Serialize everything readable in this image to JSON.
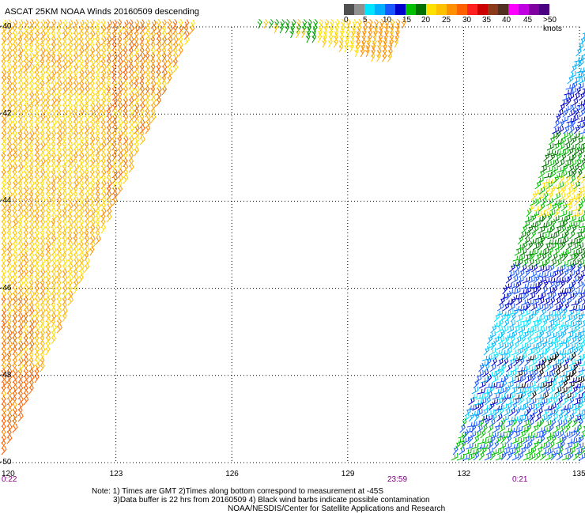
{
  "title": "ASCAT 25KM NOAA Winds 20160509 descending",
  "legend": {
    "colors": [
      "#505050",
      "#909090",
      "#00e5ff",
      "#00b0ff",
      "#1a58ff",
      "#0000cc",
      "#00c000",
      "#007000",
      "#ffe000",
      "#ffc000",
      "#ff9000",
      "#ff6000",
      "#ff2020",
      "#cc0000",
      "#8b3a1a",
      "#503020",
      "#ff00ff",
      "#c000e0",
      "#8000a0",
      "#4b0082"
    ],
    "labels": [
      "0",
      "5",
      "10",
      "15",
      "20",
      "25",
      "30",
      "35",
      "40",
      "45",
      ">50 knots"
    ]
  },
  "axes": {
    "lat_labels": [
      "-40",
      "-42",
      "-44",
      "-46",
      "-48",
      "-50"
    ],
    "lon_labels": [
      "120",
      "123",
      "126",
      "129",
      "132",
      "135"
    ]
  },
  "times": [
    "0:22",
    "23:59",
    "0:21"
  ],
  "notes": {
    "line1": "Note: 1) Times are GMT 2)Times along bottom correspond to measurement at -45S",
    "line2": "3)Data buffer is 22 hrs from 20160509 4) Black wind barbs indicate possible contamination",
    "line3": "NOAA/NESDIS/Center for Satellite Applications and Research"
  }
}
